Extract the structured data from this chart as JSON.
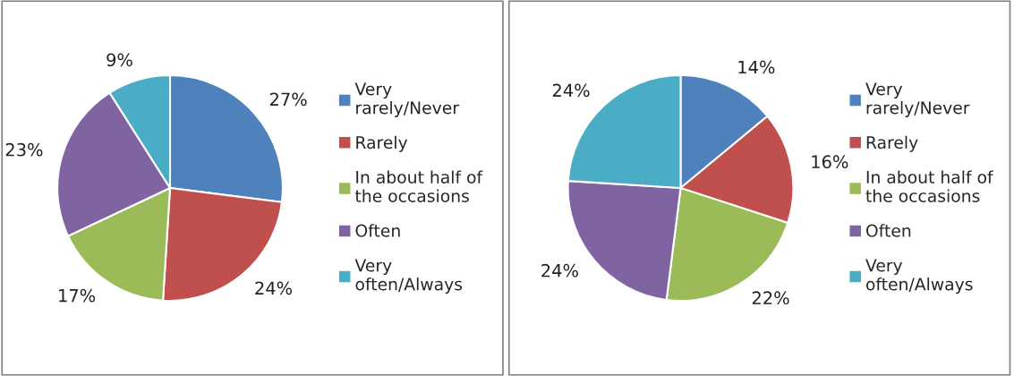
{
  "chart_data": [
    {
      "type": "pie",
      "categories": [
        "Very\nrarely/Never",
        "Rarely",
        "In about half of\nthe occasions",
        "Often",
        "Very\noften/Always"
      ],
      "values": [
        27,
        24,
        17,
        23,
        9
      ],
      "value_labels": [
        "27%",
        "24%",
        "17%",
        "23%",
        "9%"
      ],
      "colors": [
        "#4f81bd",
        "#c0504d",
        "#9bbb59",
        "#8064a2",
        "#4bacc6"
      ],
      "legend": "right"
    },
    {
      "type": "pie",
      "categories": [
        "Very\nrarely/Never",
        "Rarely",
        "In about half of\nthe occasions",
        "Often",
        "Very\noften/Always"
      ],
      "values": [
        14,
        16,
        22,
        24,
        24
      ],
      "value_labels": [
        "14%",
        "16%",
        "22%",
        "24%",
        "24%"
      ],
      "colors": [
        "#4f81bd",
        "#c0504d",
        "#9bbb59",
        "#8064a2",
        "#4bacc6"
      ],
      "legend": "right"
    }
  ]
}
